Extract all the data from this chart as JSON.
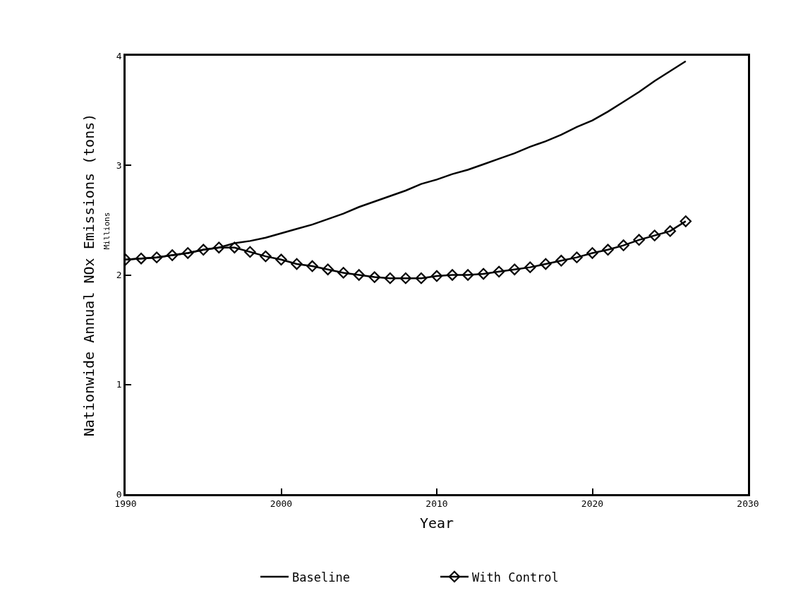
{
  "chart_data": {
    "type": "line",
    "xlabel": "Year",
    "ylabel": "Nationwide Annual NOx Emissions (tons)",
    "annotations": [
      "Millions"
    ],
    "x": [
      1990,
      1991,
      1992,
      1993,
      1994,
      1995,
      1996,
      1997,
      1998,
      1999,
      2000,
      2001,
      2002,
      2003,
      2004,
      2005,
      2006,
      2007,
      2008,
      2009,
      2010,
      2011,
      2012,
      2013,
      2014,
      2015,
      2016,
      2017,
      2018,
      2019,
      2020,
      2021,
      2022,
      2023,
      2024,
      2025,
      2026
    ],
    "series": [
      {
        "name": "Baseline",
        "color": "#000000",
        "marker": "none",
        "values": [
          2.14,
          2.15,
          2.16,
          2.18,
          2.2,
          2.23,
          2.25,
          2.29,
          2.31,
          2.34,
          2.38,
          2.42,
          2.46,
          2.51,
          2.56,
          2.62,
          2.67,
          2.72,
          2.77,
          2.83,
          2.87,
          2.92,
          2.96,
          3.01,
          3.06,
          3.11,
          3.17,
          3.22,
          3.28,
          3.35,
          3.41,
          3.49,
          3.58,
          3.67,
          3.77,
          3.86,
          3.95
        ]
      },
      {
        "name": "With Control",
        "color": "#000000",
        "marker": "diamond",
        "values": [
          2.14,
          2.15,
          2.16,
          2.18,
          2.2,
          2.23,
          2.25,
          2.25,
          2.21,
          2.17,
          2.14,
          2.1,
          2.08,
          2.05,
          2.02,
          2.0,
          1.98,
          1.97,
          1.97,
          1.97,
          1.99,
          2.0,
          2.0,
          2.01,
          2.03,
          2.05,
          2.07,
          2.1,
          2.13,
          2.16,
          2.2,
          2.23,
          2.27,
          2.32,
          2.36,
          2.4,
          2.49
        ]
      }
    ],
    "xlim": [
      1990,
      2030
    ],
    "xticks": [
      1990,
      2000,
      2010,
      2020,
      2030
    ],
    "ylim": [
      0,
      4
    ],
    "yticks": [
      0,
      1,
      2,
      3,
      4
    ],
    "legend": "bottom",
    "line_style": "solid"
  }
}
